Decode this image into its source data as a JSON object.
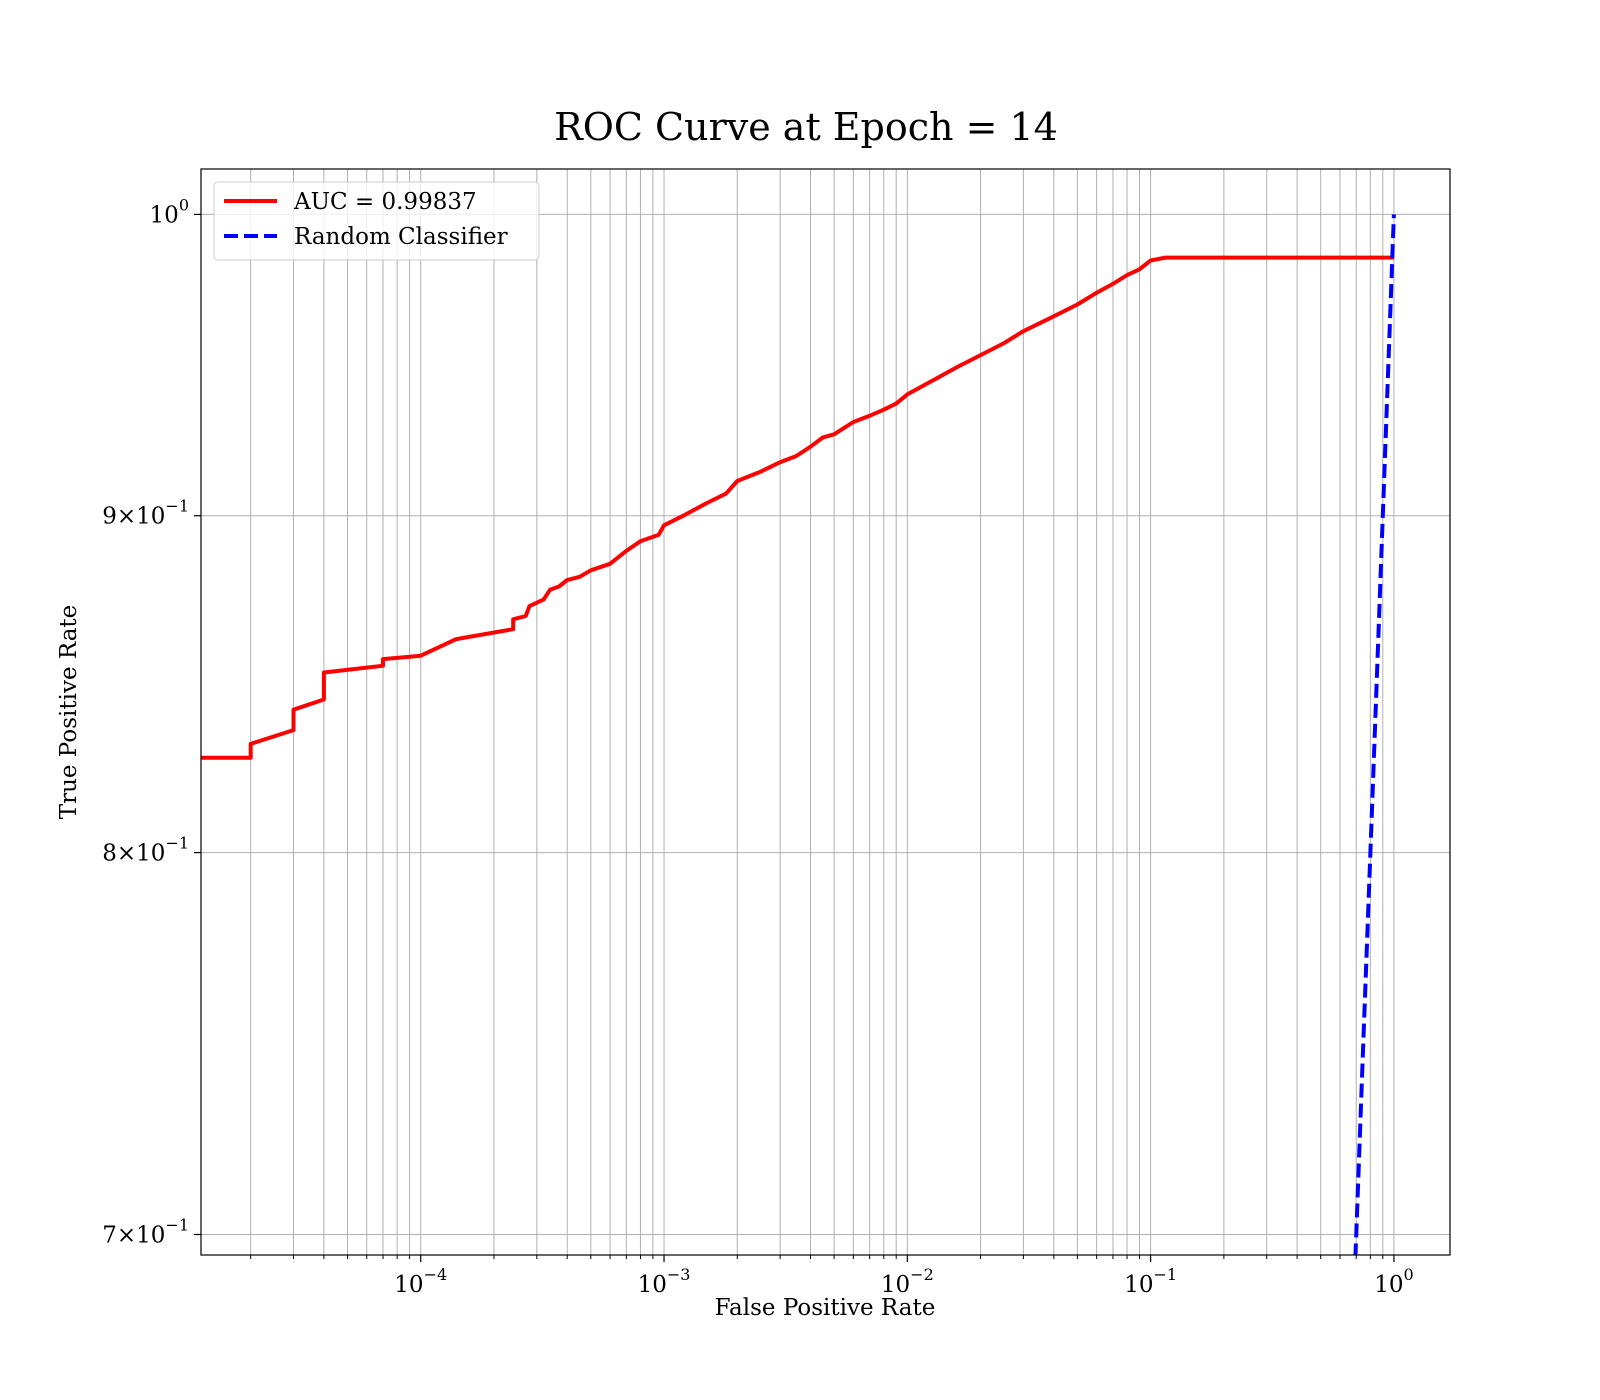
{
  "chart_data": {
    "type": "line",
    "title": "ROC Curve at Epoch = 14",
    "xlabel": "False Positive Rate",
    "ylabel": "True Positive Rate",
    "xscale": "log",
    "yscale": "log",
    "xlim": [
      1.25e-05,
      1.7
    ],
    "ylim": [
      0.695,
      1.016
    ],
    "grid": true,
    "legend_position": "top-left",
    "x_ticks": [
      {
        "value": 0.0001,
        "base": "10",
        "exp": "−4"
      },
      {
        "value": 0.001,
        "base": "10",
        "exp": "−3"
      },
      {
        "value": 0.01,
        "base": "10",
        "exp": "−2"
      },
      {
        "value": 0.1,
        "base": "10",
        "exp": "−1"
      },
      {
        "value": 1,
        "base": "10",
        "exp": "0"
      }
    ],
    "y_ticks": [
      {
        "value": 1.0,
        "mant": "",
        "base": "10",
        "exp": "0"
      },
      {
        "value": 0.9,
        "mant": "9×",
        "base": "10",
        "exp": "−1"
      },
      {
        "value": 0.8,
        "mant": "8×",
        "base": "10",
        "exp": "−1"
      },
      {
        "value": 0.7,
        "mant": "7×",
        "base": "10",
        "exp": "−1"
      }
    ],
    "series": [
      {
        "name": "AUC = 0.99837",
        "color": "#ff0000",
        "style": "solid",
        "points": [
          [
            1.25e-05,
            0.827
          ],
          [
            2e-05,
            0.827
          ],
          [
            2e-05,
            0.831
          ],
          [
            3e-05,
            0.835
          ],
          [
            3e-05,
            0.841
          ],
          [
            4e-05,
            0.844
          ],
          [
            4e-05,
            0.852
          ],
          [
            7e-05,
            0.854
          ],
          [
            7e-05,
            0.856
          ],
          [
            0.0001,
            0.857
          ],
          [
            0.00014,
            0.862
          ],
          [
            0.00024,
            0.865
          ],
          [
            0.00024,
            0.868
          ],
          [
            0.00027,
            0.869
          ],
          [
            0.00028,
            0.872
          ],
          [
            0.00032,
            0.874
          ],
          [
            0.00034,
            0.877
          ],
          [
            0.00037,
            0.878
          ],
          [
            0.0004,
            0.88
          ],
          [
            0.00045,
            0.881
          ],
          [
            0.0005,
            0.883
          ],
          [
            0.0006,
            0.885
          ],
          [
            0.0007,
            0.889
          ],
          [
            0.0008,
            0.892
          ],
          [
            0.00095,
            0.894
          ],
          [
            0.001,
            0.897
          ],
          [
            0.0012,
            0.9
          ],
          [
            0.0015,
            0.904
          ],
          [
            0.0018,
            0.907
          ],
          [
            0.002,
            0.911
          ],
          [
            0.0025,
            0.914
          ],
          [
            0.003,
            0.917
          ],
          [
            0.0035,
            0.919
          ],
          [
            0.004,
            0.922
          ],
          [
            0.0045,
            0.925
          ],
          [
            0.005,
            0.926
          ],
          [
            0.006,
            0.93
          ],
          [
            0.007,
            0.932
          ],
          [
            0.008,
            0.934
          ],
          [
            0.009,
            0.936
          ],
          [
            0.01,
            0.939
          ],
          [
            0.013,
            0.944
          ],
          [
            0.016,
            0.948
          ],
          [
            0.02,
            0.952
          ],
          [
            0.025,
            0.956
          ],
          [
            0.03,
            0.96
          ],
          [
            0.04,
            0.965
          ],
          [
            0.05,
            0.969
          ],
          [
            0.06,
            0.973
          ],
          [
            0.07,
            0.976
          ],
          [
            0.08,
            0.979
          ],
          [
            0.09,
            0.981
          ],
          [
            0.1,
            0.984
          ],
          [
            0.115,
            0.985
          ],
          [
            0.2,
            0.985
          ],
          [
            0.5,
            0.985
          ],
          [
            1.0,
            0.985
          ]
        ]
      },
      {
        "name": "Random Classifier",
        "color": "#0000ff",
        "style": "dashed",
        "points": [
          [
            0.68,
            0.68
          ],
          [
            0.75,
            0.75
          ],
          [
            0.8,
            0.8
          ],
          [
            0.85,
            0.85
          ],
          [
            0.9,
            0.9
          ],
          [
            0.95,
            0.95
          ],
          [
            1.0,
            1.0
          ]
        ]
      }
    ]
  }
}
